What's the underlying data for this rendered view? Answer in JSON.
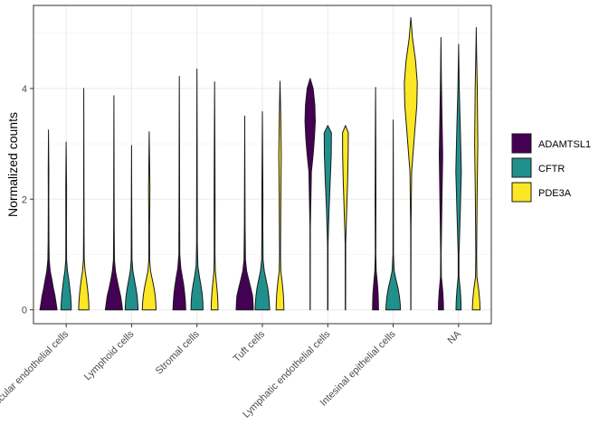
{
  "chart_data": {
    "type": "violin",
    "ylabel": "Normalized counts",
    "xlabel": "",
    "ylim": [
      -0.25,
      5.5
    ],
    "yticks": [
      0,
      2,
      4
    ],
    "grid": true,
    "legend_position": "right",
    "categories": [
      "Vascular endothelial cells",
      "Lymphoid cells",
      "Stromal cells",
      "Tuft cells",
      "Lymphatic endothelial cells",
      "Intesinal epithelial cells",
      "NA"
    ],
    "series": [
      {
        "name": "ADAMTSL1",
        "color": "#440154",
        "violins": [
          {
            "max": 3.25,
            "profile": [
              [
                0,
                1.0
              ],
              [
                0.1,
                0.9
              ],
              [
                0.25,
                0.75
              ],
              [
                0.4,
                0.55
              ],
              [
                0.55,
                0.38
              ],
              [
                0.7,
                0.2
              ],
              [
                0.9,
                0.08
              ],
              [
                1.2,
                0.05
              ],
              [
                2.0,
                0.03
              ],
              [
                2.5,
                0.04
              ],
              [
                3.25,
                0
              ]
            ]
          },
          {
            "max": 3.87,
            "profile": [
              [
                0,
                1.0
              ],
              [
                0.1,
                0.92
              ],
              [
                0.25,
                0.78
              ],
              [
                0.4,
                0.55
              ],
              [
                0.55,
                0.35
              ],
              [
                0.7,
                0.18
              ],
              [
                0.9,
                0.06
              ],
              [
                1.5,
                0.03
              ],
              [
                2.5,
                0.02
              ],
              [
                3.87,
                0
              ]
            ]
          },
          {
            "max": 4.22,
            "profile": [
              [
                0,
                0.75
              ],
              [
                0.15,
                0.7
              ],
              [
                0.3,
                0.62
              ],
              [
                0.45,
                0.5
              ],
              [
                0.6,
                0.35
              ],
              [
                0.75,
                0.18
              ],
              [
                1.0,
                0.05
              ],
              [
                2.0,
                0.03
              ],
              [
                3.0,
                0.02
              ],
              [
                4.22,
                0
              ]
            ]
          },
          {
            "max": 3.5,
            "profile": [
              [
                0,
                1.0
              ],
              [
                0.1,
                0.98
              ],
              [
                0.25,
                0.92
              ],
              [
                0.4,
                0.7
              ],
              [
                0.55,
                0.45
              ],
              [
                0.7,
                0.22
              ],
              [
                0.9,
                0.08
              ],
              [
                1.5,
                0.04
              ],
              [
                2.5,
                0.02
              ],
              [
                3.5,
                0
              ]
            ]
          },
          {
            "max": 4.18,
            "profile": [
              [
                0,
                0.01
              ],
              [
                1.5,
                0.02
              ],
              [
                2.5,
                0.15
              ],
              [
                2.8,
                0.35
              ],
              [
                3.1,
                0.5
              ],
              [
                3.4,
                0.6
              ],
              [
                3.7,
                0.55
              ],
              [
                4.0,
                0.35
              ],
              [
                4.18,
                0
              ]
            ]
          },
          {
            "max": 4.02,
            "profile": [
              [
                0,
                0.35
              ],
              [
                0.15,
                0.33
              ],
              [
                0.3,
                0.3
              ],
              [
                0.5,
                0.2
              ],
              [
                0.7,
                0.08
              ],
              [
                1.0,
                0.03
              ],
              [
                2.0,
                0.05
              ],
              [
                3.0,
                0.03
              ],
              [
                4.02,
                0
              ]
            ]
          },
          {
            "max": 4.92,
            "profile": [
              [
                0,
                0.3
              ],
              [
                0.15,
                0.28
              ],
              [
                0.35,
                0.2
              ],
              [
                0.6,
                0.05
              ],
              [
                1.0,
                0.03
              ],
              [
                2.0,
                0.12
              ],
              [
                2.8,
                0.2
              ],
              [
                3.5,
                0.12
              ],
              [
                4.2,
                0.05
              ],
              [
                4.92,
                0
              ]
            ]
          }
        ]
      },
      {
        "name": "CFTR",
        "color": "#21908c",
        "violins": [
          {
            "max": 3.03,
            "profile": [
              [
                0,
                0.6
              ],
              [
                0.1,
                0.58
              ],
              [
                0.25,
                0.52
              ],
              [
                0.4,
                0.42
              ],
              [
                0.55,
                0.3
              ],
              [
                0.7,
                0.15
              ],
              [
                0.9,
                0.05
              ],
              [
                1.5,
                0.04
              ],
              [
                2.2,
                0.05
              ],
              [
                3.03,
                0
              ]
            ]
          },
          {
            "max": 2.97,
            "profile": [
              [
                0,
                0.75
              ],
              [
                0.1,
                0.72
              ],
              [
                0.25,
                0.65
              ],
              [
                0.4,
                0.5
              ],
              [
                0.55,
                0.32
              ],
              [
                0.7,
                0.15
              ],
              [
                0.9,
                0.05
              ],
              [
                1.5,
                0.03
              ],
              [
                2.97,
                0
              ]
            ]
          },
          {
            "max": 4.35,
            "profile": [
              [
                0,
                0.7
              ],
              [
                0.15,
                0.68
              ],
              [
                0.3,
                0.6
              ],
              [
                0.45,
                0.45
              ],
              [
                0.6,
                0.28
              ],
              [
                0.8,
                0.1
              ],
              [
                1.2,
                0.04
              ],
              [
                2.5,
                0.03
              ],
              [
                4.35,
                0
              ]
            ]
          },
          {
            "max": 3.58,
            "profile": [
              [
                0,
                0.85
              ],
              [
                0.1,
                0.82
              ],
              [
                0.25,
                0.75
              ],
              [
                0.4,
                0.62
              ],
              [
                0.55,
                0.42
              ],
              [
                0.7,
                0.22
              ],
              [
                0.9,
                0.08
              ],
              [
                1.5,
                0.05
              ],
              [
                2.0,
                0.06
              ],
              [
                3.58,
                0
              ]
            ]
          },
          {
            "max": 3.33,
            "profile": [
              [
                0,
                0.02
              ],
              [
                1.2,
                0.03
              ],
              [
                1.8,
                0.15
              ],
              [
                2.3,
                0.28
              ],
              [
                2.8,
                0.4
              ],
              [
                3.2,
                0.42
              ],
              [
                3.33,
                0
              ]
            ]
          },
          {
            "max": 3.43,
            "profile": [
              [
                0,
                0.85
              ],
              [
                0.1,
                0.82
              ],
              [
                0.25,
                0.72
              ],
              [
                0.4,
                0.55
              ],
              [
                0.55,
                0.32
              ],
              [
                0.7,
                0.12
              ],
              [
                1.0,
                0.03
              ],
              [
                2.0,
                0.02
              ],
              [
                3.43,
                0
              ]
            ]
          },
          {
            "max": 4.8,
            "profile": [
              [
                0,
                0.3
              ],
              [
                0.15,
                0.28
              ],
              [
                0.35,
                0.2
              ],
              [
                0.6,
                0.05
              ],
              [
                1.0,
                0.05
              ],
              [
                1.8,
                0.2
              ],
              [
                2.5,
                0.32
              ],
              [
                3.2,
                0.22
              ],
              [
                4.0,
                0.08
              ],
              [
                4.8,
                0
              ]
            ]
          }
        ]
      },
      {
        "name": "PDE3A",
        "color": "#fde725",
        "violins": [
          {
            "max": 4.0,
            "profile": [
              [
                0,
                0.6
              ],
              [
                0.1,
                0.58
              ],
              [
                0.25,
                0.52
              ],
              [
                0.4,
                0.42
              ],
              [
                0.55,
                0.3
              ],
              [
                0.7,
                0.15
              ],
              [
                0.9,
                0.05
              ],
              [
                1.5,
                0.03
              ],
              [
                2.5,
                0.02
              ],
              [
                4.0,
                0
              ]
            ]
          },
          {
            "max": 3.22,
            "profile": [
              [
                0,
                0.8
              ],
              [
                0.1,
                0.78
              ],
              [
                0.25,
                0.7
              ],
              [
                0.4,
                0.55
              ],
              [
                0.55,
                0.35
              ],
              [
                0.7,
                0.15
              ],
              [
                0.9,
                0.05
              ],
              [
                1.5,
                0.04
              ],
              [
                2.2,
                0.08
              ],
              [
                3.22,
                0
              ]
            ]
          },
          {
            "max": 4.12,
            "profile": [
              [
                0,
                0.4
              ],
              [
                0.15,
                0.38
              ],
              [
                0.3,
                0.32
              ],
              [
                0.5,
                0.2
              ],
              [
                0.7,
                0.08
              ],
              [
                1.0,
                0.04
              ],
              [
                2.0,
                0.05
              ],
              [
                3.0,
                0.03
              ],
              [
                4.12,
                0
              ]
            ]
          },
          {
            "max": 4.13,
            "profile": [
              [
                0,
                0.45
              ],
              [
                0.15,
                0.43
              ],
              [
                0.3,
                0.38
              ],
              [
                0.5,
                0.25
              ],
              [
                0.7,
                0.1
              ],
              [
                1.0,
                0.05
              ],
              [
                2.0,
                0.1
              ],
              [
                2.8,
                0.15
              ],
              [
                3.5,
                0.08
              ],
              [
                4.13,
                0
              ]
            ]
          },
          {
            "max": 3.33,
            "profile": [
              [
                0,
                0.02
              ],
              [
                1.2,
                0.03
              ],
              [
                1.8,
                0.15
              ],
              [
                2.3,
                0.25
              ],
              [
                2.8,
                0.32
              ],
              [
                3.2,
                0.34
              ],
              [
                3.33,
                0
              ]
            ]
          },
          {
            "max": 5.28,
            "profile": [
              [
                0,
                0.01
              ],
              [
                1.5,
                0.02
              ],
              [
                2.5,
                0.1
              ],
              [
                3.2,
                0.45
              ],
              [
                3.7,
                0.7
              ],
              [
                4.1,
                0.75
              ],
              [
                4.5,
                0.55
              ],
              [
                4.9,
                0.2
              ],
              [
                5.28,
                0
              ]
            ]
          },
          {
            "max": 5.1,
            "profile": [
              [
                0,
                0.45
              ],
              [
                0.15,
                0.42
              ],
              [
                0.35,
                0.3
              ],
              [
                0.6,
                0.08
              ],
              [
                1.0,
                0.05
              ],
              [
                2.0,
                0.1
              ],
              [
                3.0,
                0.18
              ],
              [
                4.0,
                0.12
              ],
              [
                4.6,
                0.05
              ],
              [
                5.1,
                0
              ]
            ]
          }
        ]
      }
    ]
  }
}
